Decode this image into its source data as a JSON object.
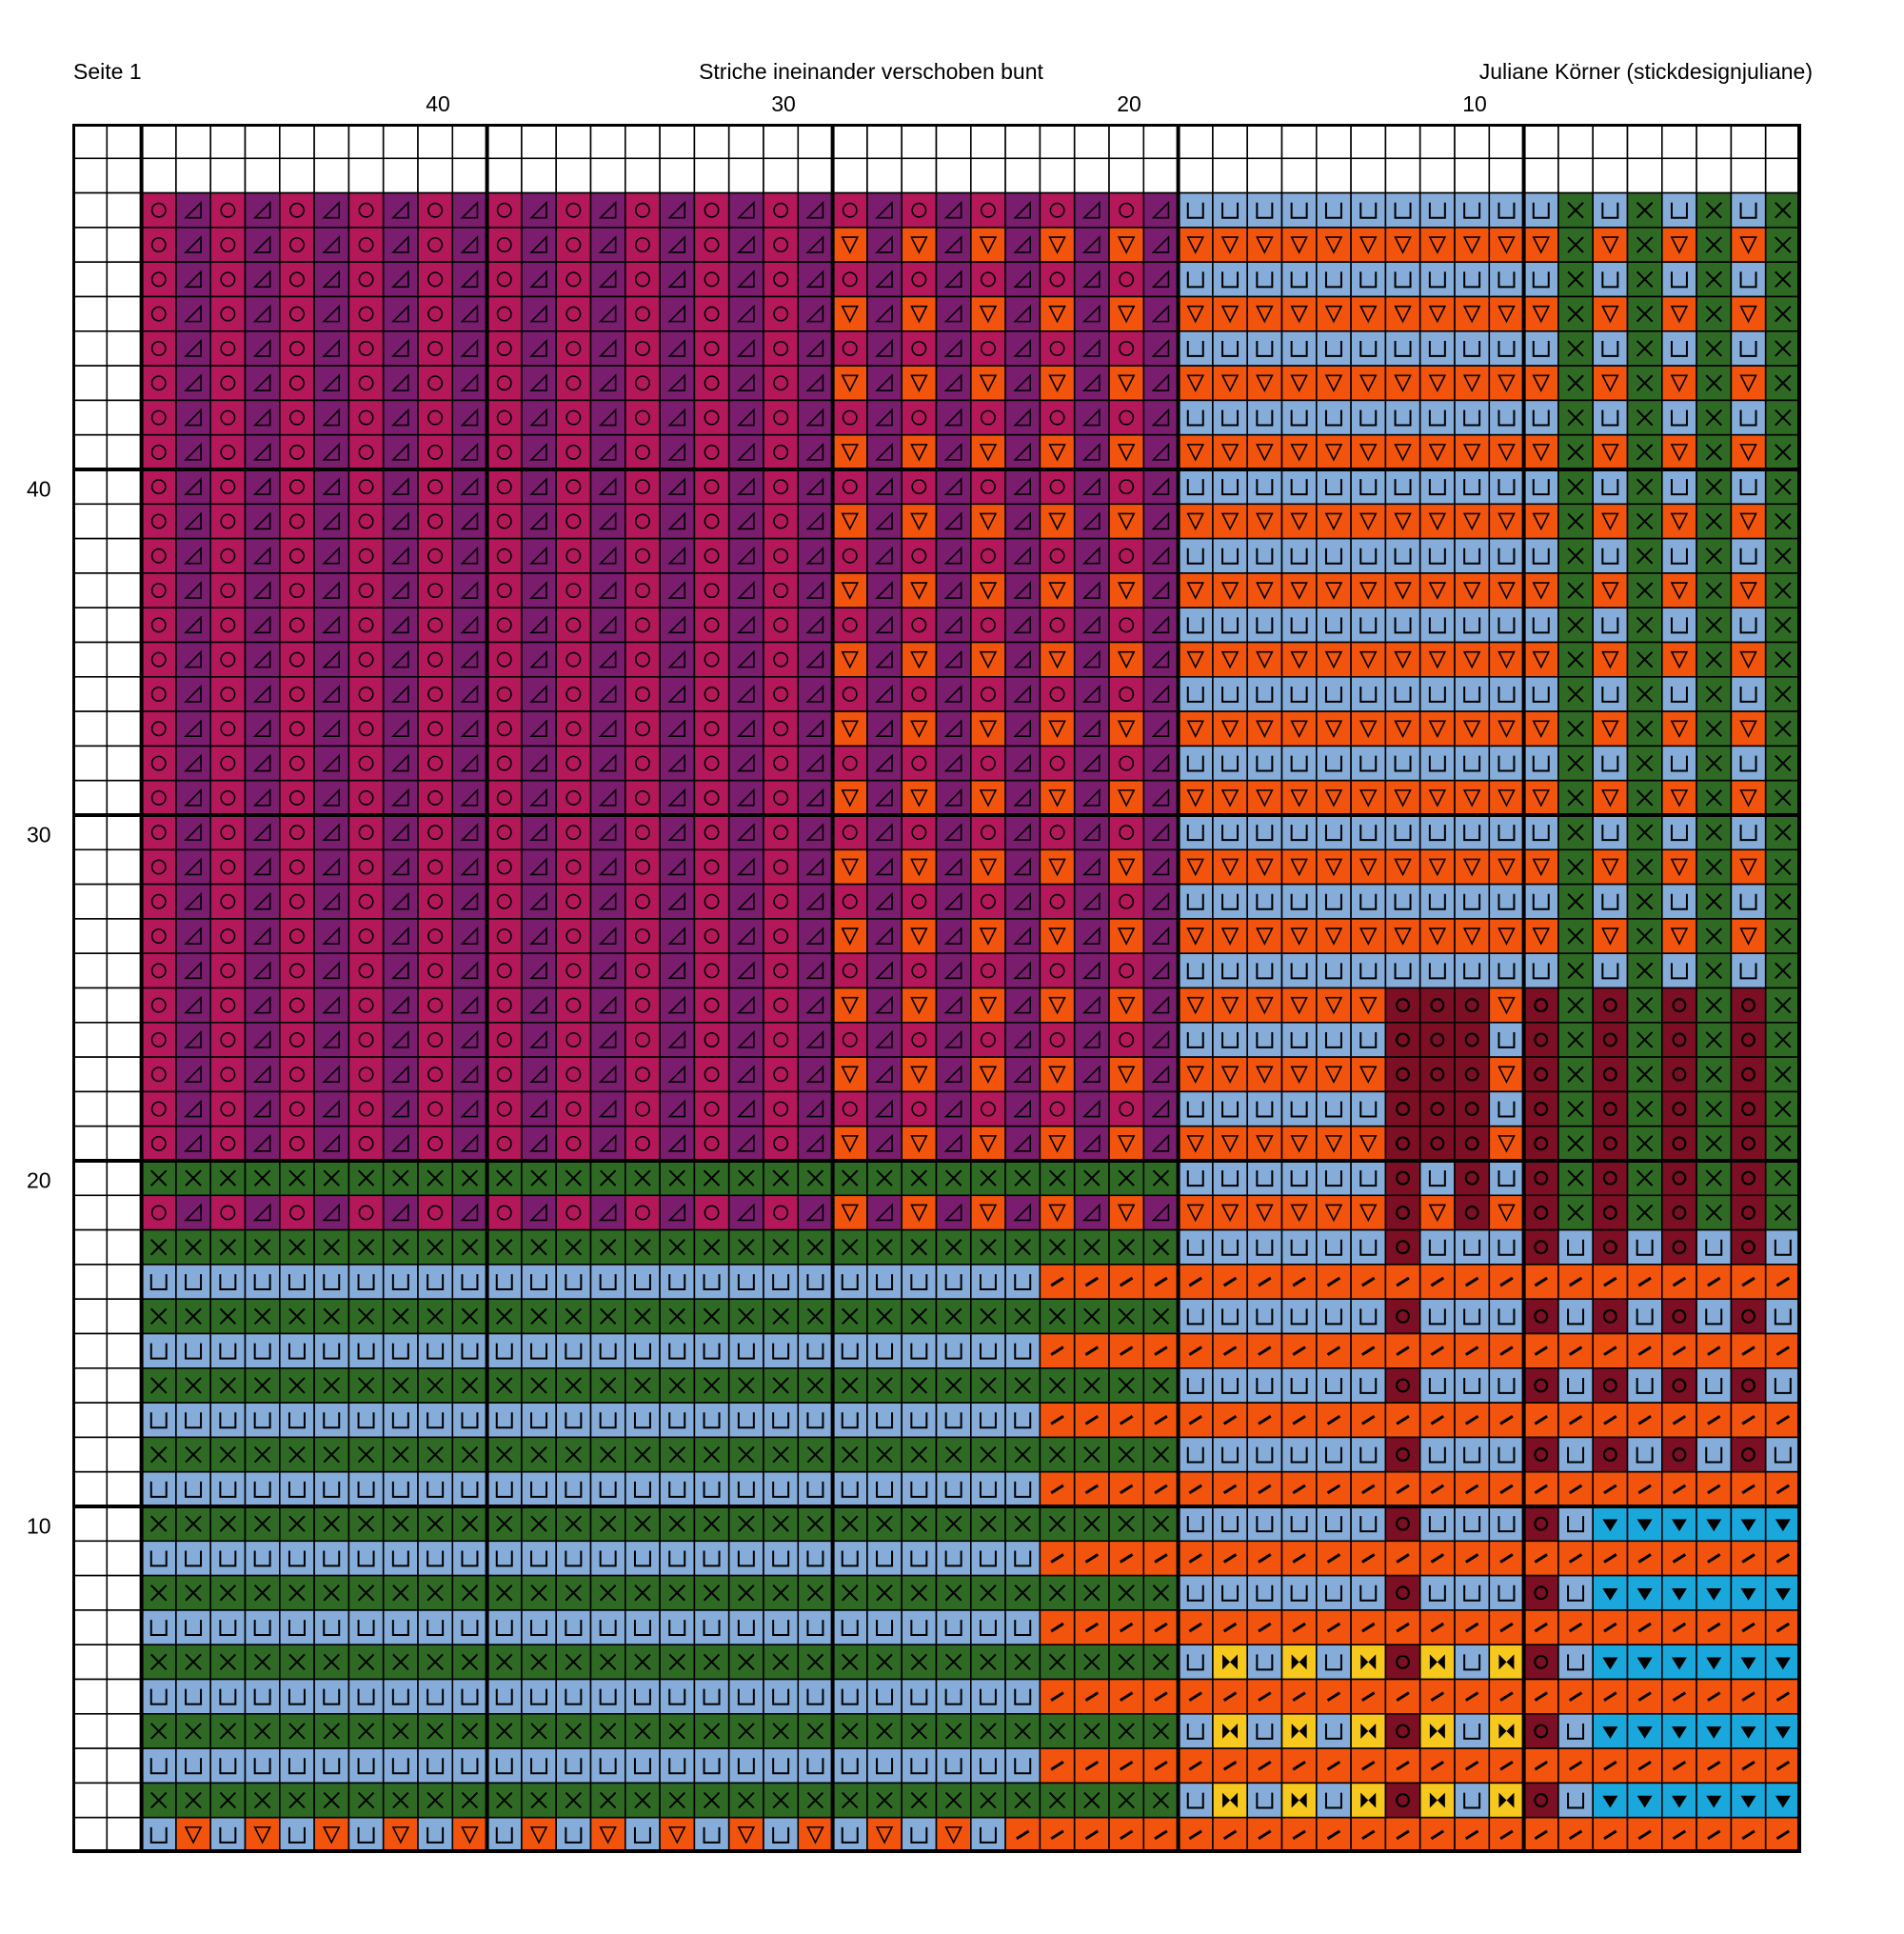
{
  "header": {
    "page_label": "Seite 1",
    "title": "Striche ineinander verschoben bunt",
    "author": "Juliane Körner (stickdesignjuliane)"
  },
  "column_numbers": [
    "40",
    "30",
    "20",
    "10"
  ],
  "row_numbers": [
    "40",
    "30",
    "20",
    "10"
  ],
  "grid": {
    "columns": 50,
    "rows": 50
  },
  "colors": {
    "magenta": "#b4185b",
    "purple": "#7a1d6e",
    "orange": "#f2540e",
    "light_blue": "#86acd9",
    "green": "#2f6a24",
    "burgundy": "#7c0f24",
    "cyan": "#1aa8dc",
    "yellow": "#f7c81d",
    "empty": "#ffffff"
  },
  "symbols": {
    "magenta": "circle",
    "purple": "triangle-corner",
    "orange": "triangle-down",
    "light_blue": "u",
    "green": "x",
    "burgundy": "ring",
    "cyan": "heart",
    "yellow": "bowtie",
    "orange_dash": "dash"
  }
}
